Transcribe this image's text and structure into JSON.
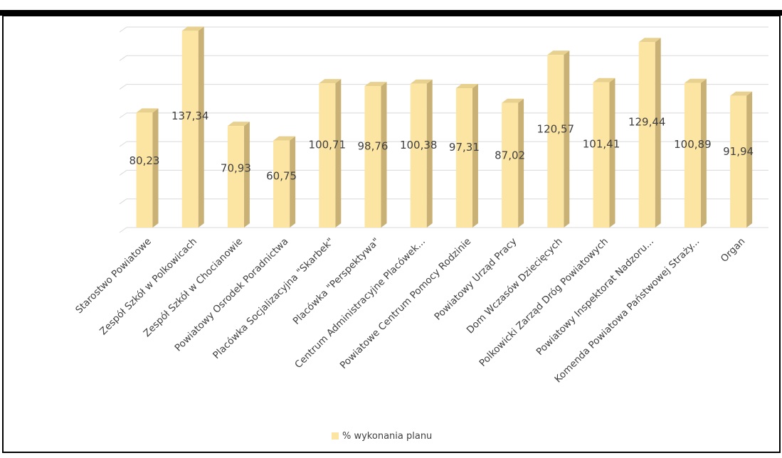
{
  "chart_data": {
    "type": "bar",
    "title": "",
    "xlabel": "",
    "ylabel": "",
    "categories": [
      "Starostwo Powiatowe",
      "Zespół Szkół w Polkowicach",
      "Zespół Szkół w Chocianowie",
      "Powiatowy Osrodek Poradnictwa",
      "Placówka Socjalizacyjna \"Skarbek\"",
      "Placówka  \"Perspektywa\"",
      "Centrum Administracyjne Placówek...",
      "Powiatowe Centrum Pomocy Rodzinie",
      "Powiatowy Urząd Pracy",
      "Dom Wczasów Dziecięcych",
      "Polkowicki Zarząd Dróg Powiatowych",
      "Powiatowy Inspektorat Nadzoru...",
      "Komenda Powiatowa Państwowej Straży...",
      "Organ"
    ],
    "series": [
      {
        "name": "% wykonania planu",
        "values": [
          80.23,
          137.34,
          70.93,
          60.75,
          100.71,
          98.76,
          100.38,
          97.31,
          87.02,
          120.57,
          101.41,
          129.44,
          100.89,
          91.94
        ]
      }
    ],
    "data_labels": [
      "80,23",
      "137,34",
      "70,93",
      "60,75",
      "100,71",
      "98,76",
      "100,38",
      "97,31",
      "87,02",
      "120,57",
      "101,41",
      "129,44",
      "100,89",
      "91,94"
    ],
    "ylim": [
      0,
      140
    ],
    "grid": true,
    "y_tick_labels_visible": false,
    "legend_position": "bottom",
    "colors": {
      "bar_front": "#FCE4A2",
      "bar_side": "#C9B175",
      "bar_top": "#E8D08E",
      "grid": "#D9D9D9",
      "label": "#404040",
      "frame": "#000000"
    }
  }
}
